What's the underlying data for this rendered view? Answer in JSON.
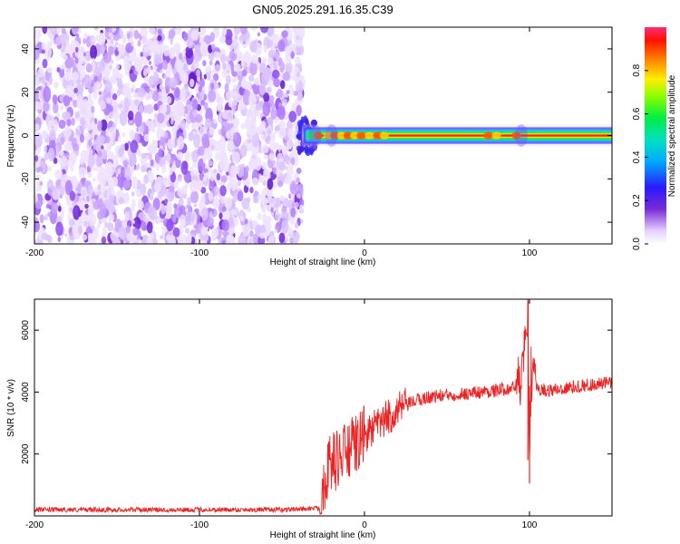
{
  "title": "GN05.2025.291.16.35.C39",
  "chart_data": [
    {
      "type": "heatmap",
      "name": "spectrogram",
      "xlabel": "Height of straight line (km)",
      "ylabel": "Frequency (Hz)",
      "xlim": [
        -200,
        150
      ],
      "ylim": [
        -50,
        50
      ],
      "xticks": [
        -200,
        -100,
        0,
        100
      ],
      "xtick_labels": [
        "-200",
        "-100",
        "0",
        "100"
      ],
      "yticks": [
        -40,
        -20,
        0,
        20,
        40
      ],
      "ytick_labels": [
        "-40",
        "-20",
        "0",
        "20",
        "40"
      ],
      "noise_region_x": [
        -200,
        -38
      ],
      "signal_band": {
        "x_start": -38,
        "x_end": 150,
        "center_hz": 0,
        "halfwidth_hz": 4
      },
      "colorbar": {
        "label": "Normalized spectral amplitude",
        "range": [
          0,
          1
        ],
        "ticks": [
          0.0,
          0.2,
          0.4,
          0.6,
          0.8
        ],
        "tick_labels": [
          "0.0",
          "0.2",
          "0.4",
          "0.6",
          "0.8"
        ]
      }
    },
    {
      "type": "line",
      "name": "snr",
      "xlabel": "Height of straight line (km)",
      "ylabel": "SNR (10 * v/v)",
      "xlim": [
        -200,
        150
      ],
      "ylim": [
        0,
        7000
      ],
      "xticks": [
        -200,
        -100,
        0,
        100
      ],
      "xtick_labels": [
        "-200",
        "-100",
        "0",
        "100"
      ],
      "yticks": [
        2000,
        4000,
        6000
      ],
      "ytick_labels": [
        "2000",
        "4000",
        "6000"
      ],
      "color": "#ee2222",
      "series": [
        {
          "name": "SNR",
          "x": [
            -200,
            -150,
            -100,
            -50,
            -27,
            -25,
            -22,
            -20,
            -15,
            -10,
            -5,
            0,
            5,
            10,
            15,
            20,
            25,
            30,
            40,
            50,
            60,
            70,
            80,
            85,
            90,
            95,
            97,
            99,
            100,
            101,
            102,
            105,
            110,
            120,
            130,
            140,
            150
          ],
          "y": [
            200,
            200,
            200,
            200,
            250,
            1000,
            1600,
            1700,
            1900,
            2100,
            2300,
            2600,
            2800,
            3000,
            3200,
            3400,
            3550,
            3700,
            3850,
            3900,
            3950,
            4000,
            4050,
            4100,
            4150,
            4400,
            5200,
            6800,
            1100,
            4600,
            4300,
            4150,
            4050,
            4100,
            4200,
            4250,
            4300
          ]
        }
      ]
    }
  ]
}
